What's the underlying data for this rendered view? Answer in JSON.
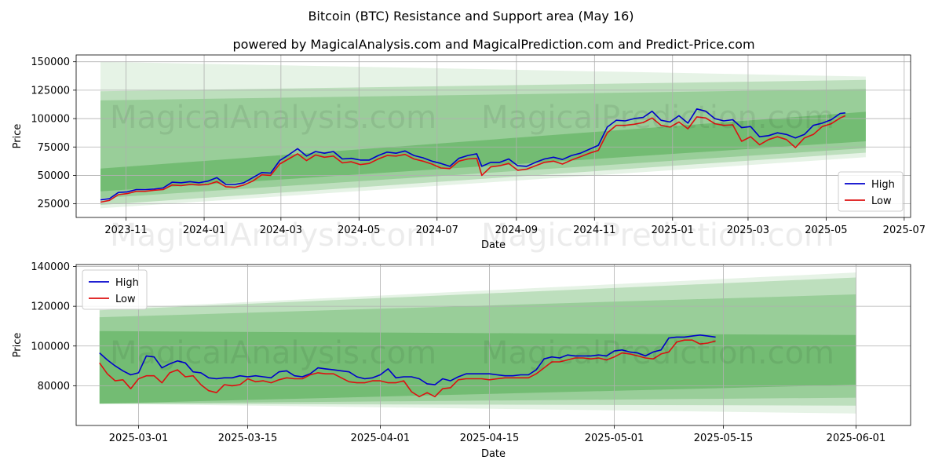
{
  "figure": {
    "title": "Bitcoin (BTC) Resistance and Support area (May 16)",
    "subtitle": "powered by MagicalAnalysis.com and MagicalPrediction.com and Predict-Price.com",
    "watermarks": [
      "MagicalAnalysis.com",
      "MagicalPrediction.com"
    ]
  },
  "colors": {
    "high": "#0000cc",
    "low": "#dd1111",
    "band": "#2e9a2e"
  },
  "chart_data": [
    {
      "type": "line",
      "xlabel": "Date",
      "ylabel": "Price",
      "xlim": [
        "2023-09-23",
        "2025-07-06"
      ],
      "ylim": [
        13000,
        156000
      ],
      "x_ticks": [
        "2023-11",
        "2024-01",
        "2024-03",
        "2024-05",
        "2024-07",
        "2024-09",
        "2024-11",
        "2025-01",
        "2025-03",
        "2025-05",
        "2025-07"
      ],
      "y_ticks": [
        "25000",
        "50000",
        "75000",
        "100000",
        "125000",
        "150000"
      ],
      "legend": "lower-right",
      "grid": true,
      "bands": [
        {
          "start": {
            "x": "2023-10-12",
            "upper": 150000,
            "lower": 21000
          },
          "end": {
            "x": "2025-06-01",
            "upper": 137000,
            "lower": 66000
          },
          "opacity": 0.12
        },
        {
          "start": {
            "x": "2023-10-12",
            "upper": 124000,
            "lower": 24000
          },
          "end": {
            "x": "2025-06-01",
            "upper": 134000,
            "lower": 70000
          },
          "opacity": 0.22
        },
        {
          "start": {
            "x": "2023-10-12",
            "upper": 116000,
            "lower": 30000
          },
          "end": {
            "x": "2025-06-01",
            "upper": 126000,
            "lower": 74000
          },
          "opacity": 0.25
        },
        {
          "start": {
            "x": "2023-10-12",
            "upper": 56000,
            "lower": 36000
          },
          "end": {
            "x": "2025-06-01",
            "upper": 106000,
            "lower": 80000
          },
          "opacity": 0.35
        }
      ],
      "series": [
        {
          "name": "High",
          "x": [
            "2023-10-12",
            "2023-10-19",
            "2023-10-26",
            "2023-11-02",
            "2023-11-09",
            "2023-11-16",
            "2023-11-23",
            "2023-11-30",
            "2023-12-07",
            "2023-12-14",
            "2023-12-21",
            "2023-12-28",
            "2024-01-04",
            "2024-01-11",
            "2024-01-18",
            "2024-01-25",
            "2024-02-01",
            "2024-02-08",
            "2024-02-15",
            "2024-02-22",
            "2024-02-29",
            "2024-03-07",
            "2024-03-14",
            "2024-03-21",
            "2024-03-28",
            "2024-04-04",
            "2024-04-11",
            "2024-04-18",
            "2024-04-25",
            "2024-05-02",
            "2024-05-09",
            "2024-05-16",
            "2024-05-23",
            "2024-05-30",
            "2024-06-06",
            "2024-06-13",
            "2024-06-20",
            "2024-06-27",
            "2024-07-04",
            "2024-07-11",
            "2024-07-18",
            "2024-07-25",
            "2024-08-01",
            "2024-08-05",
            "2024-08-12",
            "2024-08-19",
            "2024-08-26",
            "2024-09-02",
            "2024-09-09",
            "2024-09-16",
            "2024-09-23",
            "2024-09-30",
            "2024-10-07",
            "2024-10-14",
            "2024-10-21",
            "2024-10-28",
            "2024-11-04",
            "2024-11-11",
            "2024-11-18",
            "2024-11-25",
            "2024-12-02",
            "2024-12-09",
            "2024-12-16",
            "2024-12-23",
            "2024-12-30",
            "2025-01-06",
            "2025-01-13",
            "2025-01-20",
            "2025-01-27",
            "2025-02-03",
            "2025-02-10",
            "2025-02-17",
            "2025-02-24",
            "2025-03-03",
            "2025-03-10",
            "2025-03-17",
            "2025-03-24",
            "2025-03-31",
            "2025-04-07",
            "2025-04-14",
            "2025-04-21",
            "2025-04-28",
            "2025-05-05",
            "2025-05-12",
            "2025-05-16"
          ],
          "values": [
            28500,
            29500,
            35000,
            35500,
            37500,
            37500,
            38000,
            39000,
            44000,
            43500,
            44500,
            43500,
            45000,
            48000,
            42000,
            42000,
            43500,
            48000,
            52500,
            52000,
            63000,
            68000,
            73500,
            67000,
            71000,
            69500,
            71000,
            64500,
            65000,
            63500,
            63500,
            67500,
            70500,
            69500,
            71500,
            67500,
            65500,
            62500,
            60500,
            58000,
            65000,
            67500,
            69000,
            58000,
            61500,
            61500,
            64500,
            58500,
            58000,
            61500,
            64500,
            66000,
            64000,
            67500,
            69500,
            73000,
            76500,
            92500,
            98500,
            98000,
            100000,
            101000,
            106500,
            98500,
            97000,
            102500,
            96000,
            108500,
            106500,
            100000,
            98000,
            99000,
            92000,
            93000,
            84000,
            85000,
            87500,
            86000,
            83000,
            86000,
            94000,
            96000,
            99000,
            104500,
            105000
          ]
        },
        {
          "name": "Low",
          "x": [
            "2023-10-12",
            "2023-10-19",
            "2023-10-26",
            "2023-11-02",
            "2023-11-09",
            "2023-11-16",
            "2023-11-23",
            "2023-11-30",
            "2023-12-07",
            "2023-12-14",
            "2023-12-21",
            "2023-12-28",
            "2024-01-04",
            "2024-01-11",
            "2024-01-18",
            "2024-01-25",
            "2024-02-01",
            "2024-02-08",
            "2024-02-15",
            "2024-02-22",
            "2024-02-29",
            "2024-03-07",
            "2024-03-14",
            "2024-03-21",
            "2024-03-28",
            "2024-04-04",
            "2024-04-11",
            "2024-04-18",
            "2024-04-25",
            "2024-05-02",
            "2024-05-09",
            "2024-05-16",
            "2024-05-23",
            "2024-05-30",
            "2024-06-06",
            "2024-06-13",
            "2024-06-20",
            "2024-06-27",
            "2024-07-04",
            "2024-07-11",
            "2024-07-18",
            "2024-07-25",
            "2024-08-01",
            "2024-08-05",
            "2024-08-12",
            "2024-08-19",
            "2024-08-26",
            "2024-09-02",
            "2024-09-09",
            "2024-09-16",
            "2024-09-23",
            "2024-09-30",
            "2024-10-07",
            "2024-10-14",
            "2024-10-21",
            "2024-10-28",
            "2024-11-04",
            "2024-11-11",
            "2024-11-18",
            "2024-11-25",
            "2024-12-02",
            "2024-12-09",
            "2024-12-16",
            "2024-12-23",
            "2024-12-30",
            "2025-01-06",
            "2025-01-13",
            "2025-01-20",
            "2025-01-27",
            "2025-02-03",
            "2025-02-10",
            "2025-02-17",
            "2025-02-24",
            "2025-03-03",
            "2025-03-10",
            "2025-03-17",
            "2025-03-24",
            "2025-03-31",
            "2025-04-07",
            "2025-04-14",
            "2025-04-21",
            "2025-04-28",
            "2025-05-05",
            "2025-05-12",
            "2025-05-16"
          ],
          "values": [
            26500,
            28000,
            33000,
            34000,
            36000,
            36000,
            37000,
            37500,
            41500,
            41000,
            42000,
            41500,
            42000,
            44500,
            40000,
            39500,
            41500,
            45000,
            50500,
            50000,
            60000,
            64500,
            69000,
            63000,
            68000,
            66000,
            67000,
            61000,
            62000,
            59500,
            60500,
            64500,
            67500,
            67000,
            68500,
            64500,
            62500,
            60000,
            56500,
            56000,
            62500,
            64500,
            65000,
            50000,
            57500,
            58500,
            60500,
            54500,
            55500,
            58500,
            61500,
            62500,
            60000,
            63500,
            66500,
            69500,
            72000,
            87500,
            94000,
            94000,
            95000,
            96500,
            100500,
            94000,
            92500,
            97000,
            91000,
            101500,
            100500,
            95500,
            94000,
            94500,
            80000,
            84000,
            77000,
            81500,
            84000,
            81500,
            74500,
            83000,
            86000,
            93000,
            95500,
            100500,
            102500
          ]
        }
      ]
    },
    {
      "type": "line",
      "xlabel": "Date",
      "ylabel": "Price",
      "xlim": [
        "2025-02-21",
        "2025-06-08"
      ],
      "ylim": [
        60000,
        141000
      ],
      "x_ticks": [
        "2025-03-01",
        "2025-03-15",
        "2025-04-01",
        "2025-04-15",
        "2025-05-01",
        "2025-05-15",
        "2025-06-01"
      ],
      "y_ticks": [
        "80000",
        "100000",
        "120000",
        "140000"
      ],
      "legend": "upper-left",
      "grid": true,
      "bands": [
        {
          "start": {
            "x": "2025-02-24",
            "upper": 118500,
            "lower": 71000
          },
          "end": {
            "x": "2025-06-01",
            "upper": 137000,
            "lower": 66000
          },
          "opacity": 0.12
        },
        {
          "start": {
            "x": "2025-02-24",
            "upper": 118000,
            "lower": 71000
          },
          "end": {
            "x": "2025-06-01",
            "upper": 134500,
            "lower": 70000
          },
          "opacity": 0.22
        },
        {
          "start": {
            "x": "2025-02-24",
            "upper": 114500,
            "lower": 71000
          },
          "end": {
            "x": "2025-06-01",
            "upper": 126000,
            "lower": 74000
          },
          "opacity": 0.25
        },
        {
          "start": {
            "x": "2025-02-24",
            "upper": 107500,
            "lower": 71000
          },
          "end": {
            "x": "2025-06-01",
            "upper": 105500,
            "lower": 80500
          },
          "opacity": 0.35
        }
      ],
      "series": [
        {
          "name": "High",
          "x": [
            "2025-02-24",
            "2025-02-25",
            "2025-02-26",
            "2025-02-27",
            "2025-02-28",
            "2025-03-01",
            "2025-03-02",
            "2025-03-03",
            "2025-03-04",
            "2025-03-05",
            "2025-03-06",
            "2025-03-07",
            "2025-03-08",
            "2025-03-09",
            "2025-03-10",
            "2025-03-11",
            "2025-03-12",
            "2025-03-13",
            "2025-03-14",
            "2025-03-15",
            "2025-03-16",
            "2025-03-17",
            "2025-03-18",
            "2025-03-19",
            "2025-03-20",
            "2025-03-21",
            "2025-03-22",
            "2025-03-23",
            "2025-03-24",
            "2025-03-25",
            "2025-03-26",
            "2025-03-27",
            "2025-03-28",
            "2025-03-29",
            "2025-03-30",
            "2025-03-31",
            "2025-04-01",
            "2025-04-02",
            "2025-04-03",
            "2025-04-04",
            "2025-04-05",
            "2025-04-06",
            "2025-04-07",
            "2025-04-08",
            "2025-04-09",
            "2025-04-10",
            "2025-04-11",
            "2025-04-12",
            "2025-04-13",
            "2025-04-14",
            "2025-04-15",
            "2025-04-16",
            "2025-04-17",
            "2025-04-18",
            "2025-04-19",
            "2025-04-20",
            "2025-04-21",
            "2025-04-22",
            "2025-04-23",
            "2025-04-24",
            "2025-04-25",
            "2025-04-26",
            "2025-04-27",
            "2025-04-28",
            "2025-04-29",
            "2025-04-30",
            "2025-05-01",
            "2025-05-02",
            "2025-05-03",
            "2025-05-04",
            "2025-05-05",
            "2025-05-06",
            "2025-05-07",
            "2025-05-08",
            "2025-05-09",
            "2025-05-10",
            "2025-05-11",
            "2025-05-12",
            "2025-05-13",
            "2025-05-14"
          ],
          "values": [
            96500,
            93000,
            90000,
            87500,
            85500,
            86500,
            95000,
            94500,
            89000,
            91000,
            92500,
            91500,
            87000,
            86500,
            84000,
            83500,
            84000,
            84000,
            85000,
            84500,
            85000,
            84500,
            84000,
            87000,
            87500,
            85000,
            84500,
            86000,
            89000,
            88500,
            88000,
            87500,
            87000,
            84500,
            83500,
            84000,
            85500,
            88500,
            84000,
            84500,
            84500,
            83500,
            81000,
            80500,
            83500,
            82500,
            84500,
            86000,
            86000,
            86000,
            86000,
            85500,
            85000,
            85000,
            85500,
            85500,
            88000,
            93500,
            94500,
            94000,
            95500,
            95000,
            95000,
            95000,
            95500,
            95000,
            97500,
            98000,
            97000,
            96500,
            95000,
            97000,
            98000,
            104000,
            104500,
            104500,
            105000,
            105500,
            105000,
            104500
          ]
        },
        {
          "name": "Low",
          "x": [
            "2025-02-24",
            "2025-02-25",
            "2025-02-26",
            "2025-02-27",
            "2025-02-28",
            "2025-03-01",
            "2025-03-02",
            "2025-03-03",
            "2025-03-04",
            "2025-03-05",
            "2025-03-06",
            "2025-03-07",
            "2025-03-08",
            "2025-03-09",
            "2025-03-10",
            "2025-03-11",
            "2025-03-12",
            "2025-03-13",
            "2025-03-14",
            "2025-03-15",
            "2025-03-16",
            "2025-03-17",
            "2025-03-18",
            "2025-03-19",
            "2025-03-20",
            "2025-03-21",
            "2025-03-22",
            "2025-03-23",
            "2025-03-24",
            "2025-03-25",
            "2025-03-26",
            "2025-03-27",
            "2025-03-28",
            "2025-03-29",
            "2025-03-30",
            "2025-03-31",
            "2025-04-01",
            "2025-04-02",
            "2025-04-03",
            "2025-04-04",
            "2025-04-05",
            "2025-04-06",
            "2025-04-07",
            "2025-04-08",
            "2025-04-09",
            "2025-04-10",
            "2025-04-11",
            "2025-04-12",
            "2025-04-13",
            "2025-04-14",
            "2025-04-15",
            "2025-04-16",
            "2025-04-17",
            "2025-04-18",
            "2025-04-19",
            "2025-04-20",
            "2025-04-21",
            "2025-04-22",
            "2025-04-23",
            "2025-04-24",
            "2025-04-25",
            "2025-04-26",
            "2025-04-27",
            "2025-04-28",
            "2025-04-29",
            "2025-04-30",
            "2025-05-01",
            "2025-05-02",
            "2025-05-03",
            "2025-05-04",
            "2025-05-05",
            "2025-05-06",
            "2025-05-07",
            "2025-05-08",
            "2025-05-09",
            "2025-05-10",
            "2025-05-11",
            "2025-05-12",
            "2025-05-13",
            "2025-05-14"
          ],
          "values": [
            91500,
            86000,
            82500,
            83000,
            78500,
            83500,
            85000,
            85000,
            81500,
            86500,
            88000,
            84500,
            85000,
            80500,
            77500,
            76500,
            80500,
            80000,
            80500,
            83500,
            82000,
            82500,
            81500,
            83000,
            84000,
            83500,
            83500,
            85500,
            86500,
            86000,
            86000,
            84000,
            82000,
            81500,
            81500,
            82500,
            82500,
            81500,
            81500,
            82500,
            77000,
            74500,
            76500,
            74500,
            78500,
            79000,
            83000,
            83500,
            83500,
            83500,
            83000,
            83500,
            84000,
            84000,
            84000,
            84000,
            86000,
            89000,
            92000,
            92000,
            93000,
            94000,
            94000,
            93500,
            94000,
            93000,
            94500,
            96500,
            96000,
            95000,
            94000,
            93500,
            96000,
            97000,
            102000,
            103000,
            103000,
            101000,
            101500,
            102500
          ]
        }
      ]
    }
  ]
}
